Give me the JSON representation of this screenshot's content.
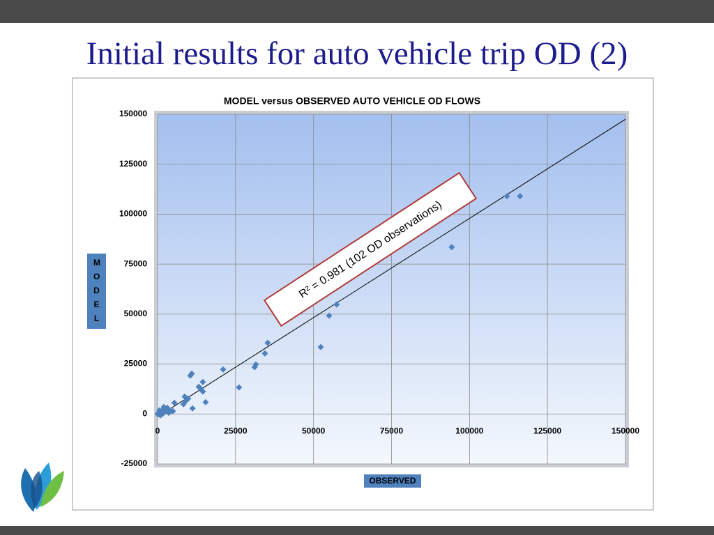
{
  "slide": {
    "title": "Initial results for auto vehicle trip OD (2)"
  },
  "chart_data": {
    "type": "scatter",
    "title": "MODEL versus OBSERVED AUTO VEHICLE OD FLOWS",
    "xlabel": "OBSERVED",
    "ylabel": "MODEL",
    "xlim": [
      0,
      150000
    ],
    "ylim": [
      -25000,
      150000
    ],
    "xticks": [
      0,
      25000,
      50000,
      75000,
      100000,
      125000,
      150000
    ],
    "yticks": [
      -25000,
      0,
      25000,
      50000,
      75000,
      100000,
      125000,
      150000
    ],
    "grid": true,
    "color": "#4f81bd",
    "x": [
      112000,
      116200,
      94300,
      57400,
      55000,
      52300,
      35300,
      34400,
      31500,
      31100,
      21000,
      26100,
      10950,
      10500,
      14500,
      13200,
      14500,
      13900,
      15400,
      8900,
      9800,
      8700,
      8300,
      11200,
      5400,
      4900,
      3100,
      2000,
      2700,
      1300,
      500,
      0,
      900,
      4000,
      2200,
      600,
      3600,
      1600
    ],
    "values": [
      109000,
      109000,
      83500,
      54800,
      49200,
      33500,
      35600,
      30300,
      24800,
      23400,
      22300,
      13300,
      20200,
      19200,
      16000,
      13600,
      11200,
      12600,
      5900,
      6300,
      7700,
      8700,
      4900,
      2800,
      5600,
      1400,
      3100,
      3500,
      1400,
      1400,
      700,
      0,
      -700,
      1700,
      2800,
      1800,
      600,
      0
    ],
    "trendline": {
      "color": "#000000",
      "x": [
        0,
        150000
      ],
      "values": [
        -1400,
        147500
      ]
    },
    "annotations": [
      {
        "text": "R² = 0.981  (102 OD observations)"
      }
    ]
  }
}
